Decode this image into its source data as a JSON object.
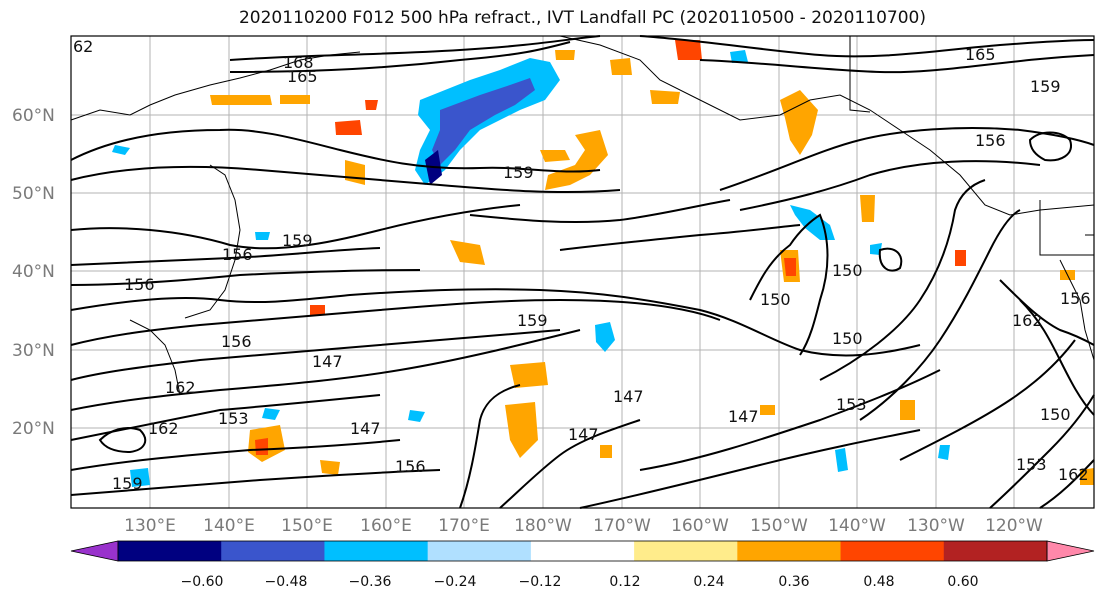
{
  "title": "2020110200 F012 500 hPa refract., IVT Landfall PC (2020110500 - 2020110700)",
  "map": {
    "lat_labels": [
      "60°N",
      "50°N",
      "40°N",
      "30°N",
      "20°N"
    ],
    "lon_labels": [
      "130°E",
      "140°E",
      "150°E",
      "160°E",
      "170°E",
      "180°W",
      "170°W",
      "160°W",
      "150°W",
      "140°W",
      "130°W",
      "120°W"
    ],
    "contour_labels": [
      "168",
      "165",
      "159",
      "156",
      "159",
      "156",
      "156",
      "147",
      "162",
      "162",
      "153",
      "147",
      "147",
      "147",
      "150",
      "153",
      "150",
      "150",
      "159",
      "156",
      "156",
      "162",
      "165",
      "159",
      "162",
      "159",
      "147",
      "150",
      "153",
      "156",
      "62"
    ]
  },
  "colorbar": {
    "tick_labels": [
      "−0.60",
      "−0.48",
      "−0.36",
      "−0.24",
      "−0.12",
      "0.12",
      "0.24",
      "0.36",
      "0.48",
      "0.60"
    ],
    "colors": [
      "#9932cc",
      "#000080",
      "#3a55cc",
      "#00bfff",
      "#b0e0ff",
      "#ffffff",
      "#ffec8b",
      "#ffa500",
      "#ff4500",
      "#b22222",
      "#ff88aa"
    ]
  }
}
